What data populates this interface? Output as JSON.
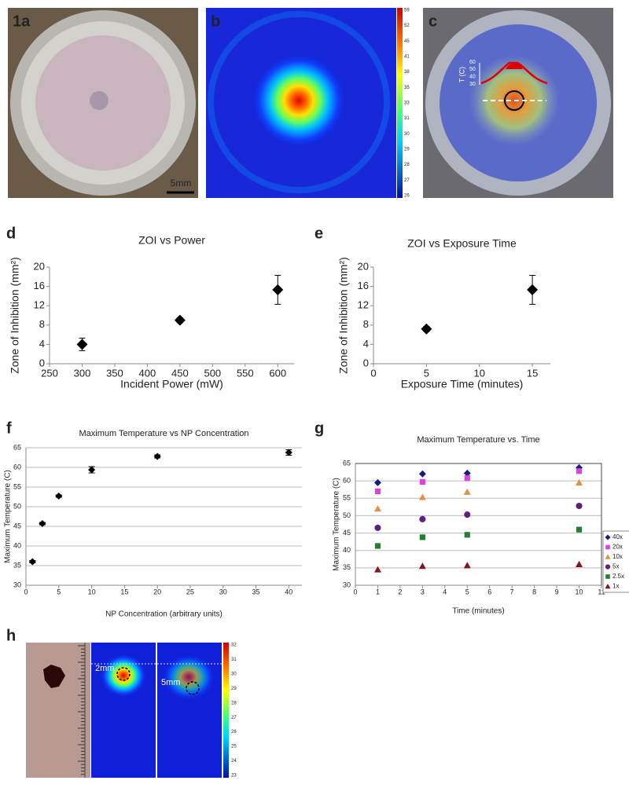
{
  "panels": {
    "a": "1a",
    "b": "b",
    "c": "c",
    "d": "d",
    "e": "e",
    "f": "f",
    "g": "g",
    "h": "h"
  },
  "panel_a": {
    "scale_bar": "5mm"
  },
  "panel_b": {
    "colorbar_ticks": [
      59,
      52,
      45,
      41,
      38,
      35,
      33,
      31,
      30,
      29,
      28,
      27,
      26
    ]
  },
  "panel_c": {
    "axis_label": "T (C)",
    "ticks": [
      60,
      50,
      40,
      30
    ]
  },
  "panel_h": {
    "depth_labels": [
      "2mm",
      "5mm"
    ],
    "colorbar_ticks": [
      32,
      31,
      30,
      29,
      28,
      27,
      26,
      25,
      24,
      23
    ]
  },
  "chart_data": [
    {
      "type": "scatter",
      "title": "ZOI vs Power",
      "x_label": "Incident Power (mW)",
      "y_label": "Zone of Inhibition (mm²)",
      "x": [
        300,
        450,
        600
      ],
      "values": [
        4,
        9,
        15.3
      ],
      "errors": [
        1.3,
        0.5,
        3.0
      ],
      "color": "#000000",
      "marker": "diamond",
      "xlim": [
        250,
        625
      ],
      "xticks": [
        250,
        300,
        350,
        400,
        450,
        500,
        550,
        600
      ],
      "ylim": [
        0,
        20
      ],
      "yticks": [
        0,
        4,
        8,
        12,
        16,
        20
      ],
      "grid": false
    },
    {
      "type": "scatter",
      "title": "ZOI vs Exposure Time",
      "x_label": "Exposure Time (minutes)",
      "y_label": "Zone of Inhibition (mm²)",
      "x": [
        5,
        15
      ],
      "values": [
        7.2,
        15.3
      ],
      "errors": [
        0.5,
        3.0
      ],
      "color": "#000000",
      "marker": "diamond",
      "xlim": [
        0,
        16.7
      ],
      "xticks": [
        0,
        5,
        10,
        15
      ],
      "ylim": [
        0,
        20
      ],
      "yticks": [
        0,
        4,
        8,
        12,
        16,
        20
      ],
      "grid": false
    },
    {
      "type": "scatter",
      "title": "Maximum Temperature vs NP Concentration",
      "x_label": "NP Concentration (arbitrary units)",
      "y_label": "Maximum Temperature (C)",
      "x": [
        1,
        2.5,
        5,
        10,
        20,
        40
      ],
      "values": [
        36,
        45.7,
        52.7,
        59.4,
        62.8,
        63.8
      ],
      "errors": [
        0.3,
        0.3,
        0.3,
        0.8,
        0.4,
        0.7
      ],
      "color": "#000000",
      "marker": "diamond",
      "xlim": [
        0,
        42
      ],
      "xticks": [
        0,
        5,
        10,
        15,
        20,
        25,
        30,
        35,
        40
      ],
      "ylim": [
        30,
        65
      ],
      "yticks": [
        30,
        35,
        40,
        45,
        50,
        55,
        60,
        65
      ],
      "grid": true
    },
    {
      "type": "scatter",
      "title": "Maximum Temperature vs. Time",
      "x_label": "Time (minutes)",
      "y_label": "Maximum Temperature (C)",
      "x": [
        1,
        3,
        5,
        10
      ],
      "series": [
        {
          "name": "40x",
          "color": "#1a1a80",
          "marker": "diamond",
          "values": [
            59.5,
            62,
            62.2,
            63.8
          ]
        },
        {
          "name": "20x",
          "color": "#e040e0",
          "marker": "square",
          "values": [
            57,
            59.7,
            60.8,
            62.8
          ]
        },
        {
          "name": "10x",
          "color": "#e09040",
          "marker": "triangle",
          "values": [
            52,
            55.3,
            56.8,
            59.5
          ]
        },
        {
          "name": "5x",
          "color": "#602080",
          "marker": "circle",
          "values": [
            46.5,
            49,
            50.3,
            52.8
          ]
        },
        {
          "name": "2.5x",
          "color": "#208030",
          "marker": "square",
          "values": [
            41.3,
            43.8,
            44.5,
            46
          ]
        },
        {
          "name": "1x",
          "color": "#801818",
          "marker": "triangle",
          "values": [
            34.5,
            35.5,
            35.7,
            36
          ]
        }
      ],
      "xlim": [
        0,
        11
      ],
      "xticks": [
        0,
        1,
        2,
        3,
        4,
        5,
        6,
        7,
        8,
        9,
        10,
        11
      ],
      "ylim": [
        30,
        65
      ],
      "yticks": [
        30,
        35,
        40,
        45,
        50,
        55,
        60,
        65
      ],
      "grid": true,
      "legend": "right"
    }
  ]
}
